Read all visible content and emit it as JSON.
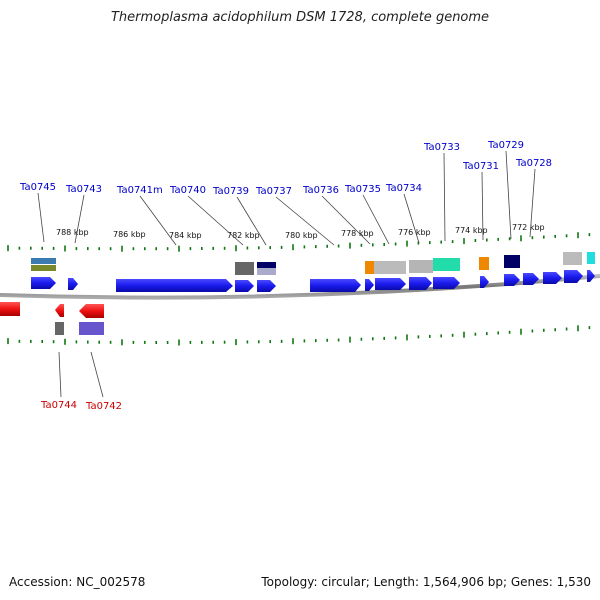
{
  "title": "Thermoplasma acidophilum DSM 1728, complete genome",
  "accession": "Accession: NC_002578",
  "topology": "Topology: circular; Length: 1,564,906 bp; Genes: 1,530",
  "colors": {
    "forward_label": "#0000cc",
    "reverse_label": "#cc0000",
    "forward_gene": "#1a1aee",
    "reverse_gene": "#ee1111",
    "tick": "#117711",
    "backbone": "#888888"
  },
  "scale_labels": [
    "788 kbp",
    "786 kbp",
    "784 kbp",
    "782 kbp",
    "780 kbp",
    "778 kbp",
    "776 kbp",
    "774 kbp",
    "772 kbp"
  ],
  "forward_gene_labels": [
    "Ta0745",
    "Ta0743",
    "Ta0741m",
    "Ta0740",
    "Ta0739",
    "Ta0737",
    "Ta0736",
    "Ta0735",
    "Ta0734",
    "Ta0733",
    "Ta0731",
    "Ta0729",
    "Ta0728"
  ],
  "reverse_gene_labels": [
    "Ta0744",
    "Ta0742"
  ]
}
